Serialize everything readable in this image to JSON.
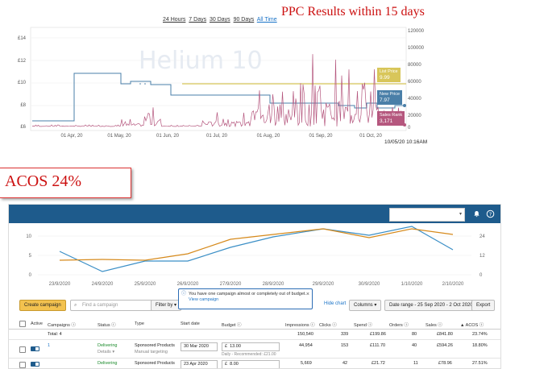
{
  "top_chart": {
    "headline": "PPC Results within 15 days",
    "ranges": [
      "24 Hours",
      "7 Days",
      "30 Days",
      "90 Days",
      "All Time"
    ],
    "active_range": "All Time",
    "watermark": "Helium 10",
    "left_ticks": [
      "£14",
      "£12",
      "£10",
      "£8",
      "£6"
    ],
    "right_ticks": [
      "120000",
      "100000",
      "80000",
      "60000",
      "40000",
      "20000",
      "0"
    ],
    "x_ticks": [
      "01 Apr, 20",
      "01 May, 20",
      "01 Jun, 20",
      "01 Jul, 20",
      "01 Aug, 20",
      "01 Sep, 20",
      "01 Oct, 20"
    ],
    "badges": {
      "list_price_label": "List Price",
      "list_price_value": "9.99",
      "new_price_label": "New Price",
      "new_price_value": "7.97",
      "sales_rank_label": "Sales Rank",
      "sales_rank_value": "3,171"
    },
    "timestamp": "10/05/20 10:16AM",
    "colors": {
      "list_price": "#d8c65a",
      "new_price": "#4a7fa8",
      "sales_rank": "#b5577e"
    }
  },
  "acos_label": "ACOS 24%",
  "console": {
    "topbar_icons": [
      "bell-icon",
      "help-icon"
    ],
    "perf_chart": {
      "left_ticks": [
        "10",
        "5",
        "0"
      ],
      "right_ticks": [
        "24",
        "12",
        "0"
      ],
      "x_ticks": [
        "23/9/2020",
        "24/9/2020",
        "25/9/2020",
        "26/9/2020",
        "27/9/2020",
        "28/9/2020",
        "29/9/2020",
        "30/9/2020",
        "1/10/2020",
        "2/10/2020"
      ],
      "colors": {
        "blue": "#3b8fc6",
        "orange": "#d68a1c"
      }
    },
    "toolbar": {
      "create_campaign": "Create campaign",
      "search_placeholder": "Find a campaign",
      "filter_by": "Filter by",
      "hide_chart": "Hide chart",
      "columns": "Columns",
      "date_range": "Date range - 25 Sep 2020 - 2 Oct 2020",
      "export": "Export"
    },
    "alert": {
      "text": "You have one campaign almost or completely out of budget.",
      "link": "View campaign"
    },
    "table": {
      "headers": [
        "Active",
        "Campaigns",
        "Status",
        "Type",
        "Start date",
        "Budget",
        "Impressions",
        "Clicks",
        "Spend",
        "Orders",
        "Sales",
        "ACOS"
      ],
      "total": {
        "label": "Total: 4",
        "impressions": "150,540",
        "clicks": "339",
        "spend": "£199.86",
        "orders": "80",
        "sales": "£841.80",
        "acos": "23.74%"
      },
      "rows": [
        {
          "campaign": "1",
          "status": "Delivering",
          "status_sub": "Details",
          "type": "Sponsored Products",
          "type_sub": "Manual targeting",
          "start_date": "30 Mar 2020",
          "budget_currency": "£",
          "budget": "13.00",
          "budget_note": "Daily - Recommended: £21.00",
          "impressions": "44,954",
          "clicks": "153",
          "spend": "£111.70",
          "orders": "40",
          "sales": "£594.26",
          "acos": "18.80%"
        },
        {
          "campaign": "",
          "status": "Delivering",
          "status_sub": "",
          "type": "Sponsored Products",
          "type_sub": "",
          "start_date": "23 Apr 2020",
          "budget_currency": "£",
          "budget": "8.00",
          "budget_note": "",
          "impressions": "5,669",
          "clicks": "42",
          "spend": "£21.72",
          "orders": "11",
          "sales": "£78.96",
          "acos": "27.51%"
        }
      ]
    }
  }
}
